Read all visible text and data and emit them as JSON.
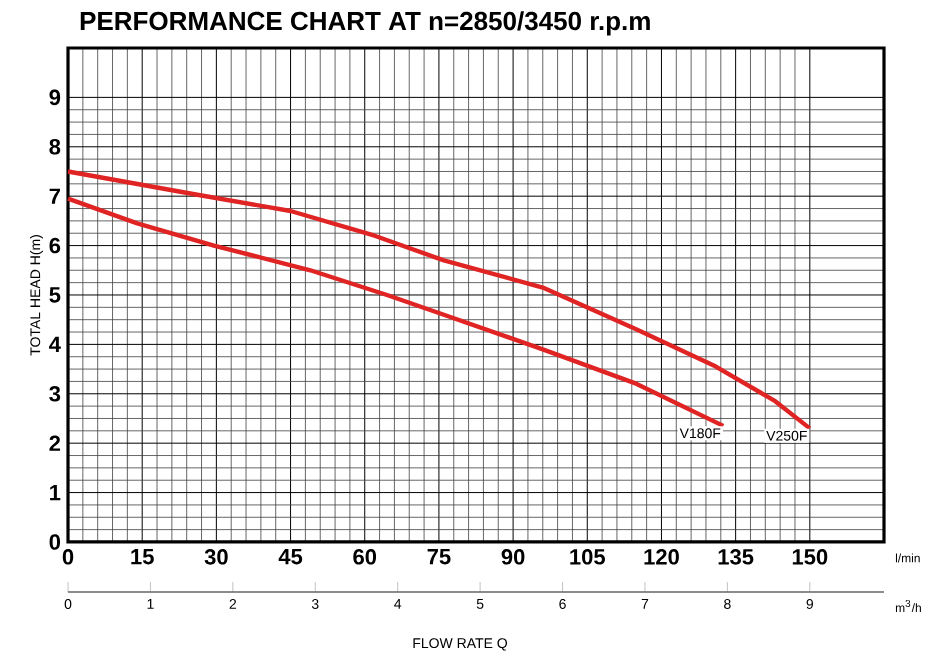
{
  "chart_data": {
    "type": "line",
    "title": "PERFORMANCE CHART AT n=2850/3450 r.p.m",
    "ylabel": "TOTAL HEAD H(m)",
    "xlabel": "l/min",
    "x2label": "m$^{3}$/h",
    "annotations": [
      "FLOW RATE Q"
    ],
    "series": [
      {
        "name": "V250F",
        "color": "#e02424",
        "x": [
          0,
          25,
          45,
          62,
          76,
          96,
          115,
          131,
          143,
          150
        ],
        "values": [
          7.5,
          7.05,
          6.7,
          6.2,
          5.7,
          5.15,
          4.3,
          3.55,
          2.85,
          2.3
        ]
      },
      {
        "name": "V180F",
        "color": "#e02424",
        "x": [
          0,
          14,
          29.5,
          49,
          64.5,
          76,
          96,
          115,
          132.5
        ],
        "values": [
          6.95,
          6.45,
          6.0,
          5.5,
          5.0,
          4.6,
          3.9,
          3.2,
          2.35
        ]
      }
    ],
    "xlim": [
      0,
      165
    ],
    "xticks": [
      0,
      15,
      30,
      45,
      60,
      75,
      90,
      105,
      120,
      135,
      150
    ],
    "x2lim": [
      0,
      9.9
    ],
    "x2ticks": [
      0,
      1,
      2,
      3,
      4,
      5,
      6,
      7,
      8,
      9
    ],
    "ylim": [
      0,
      10
    ],
    "yticks": [
      0,
      1,
      2,
      3,
      4,
      5,
      6,
      7,
      8,
      9
    ],
    "grid": true,
    "marker": "none",
    "line_style": "solid"
  }
}
